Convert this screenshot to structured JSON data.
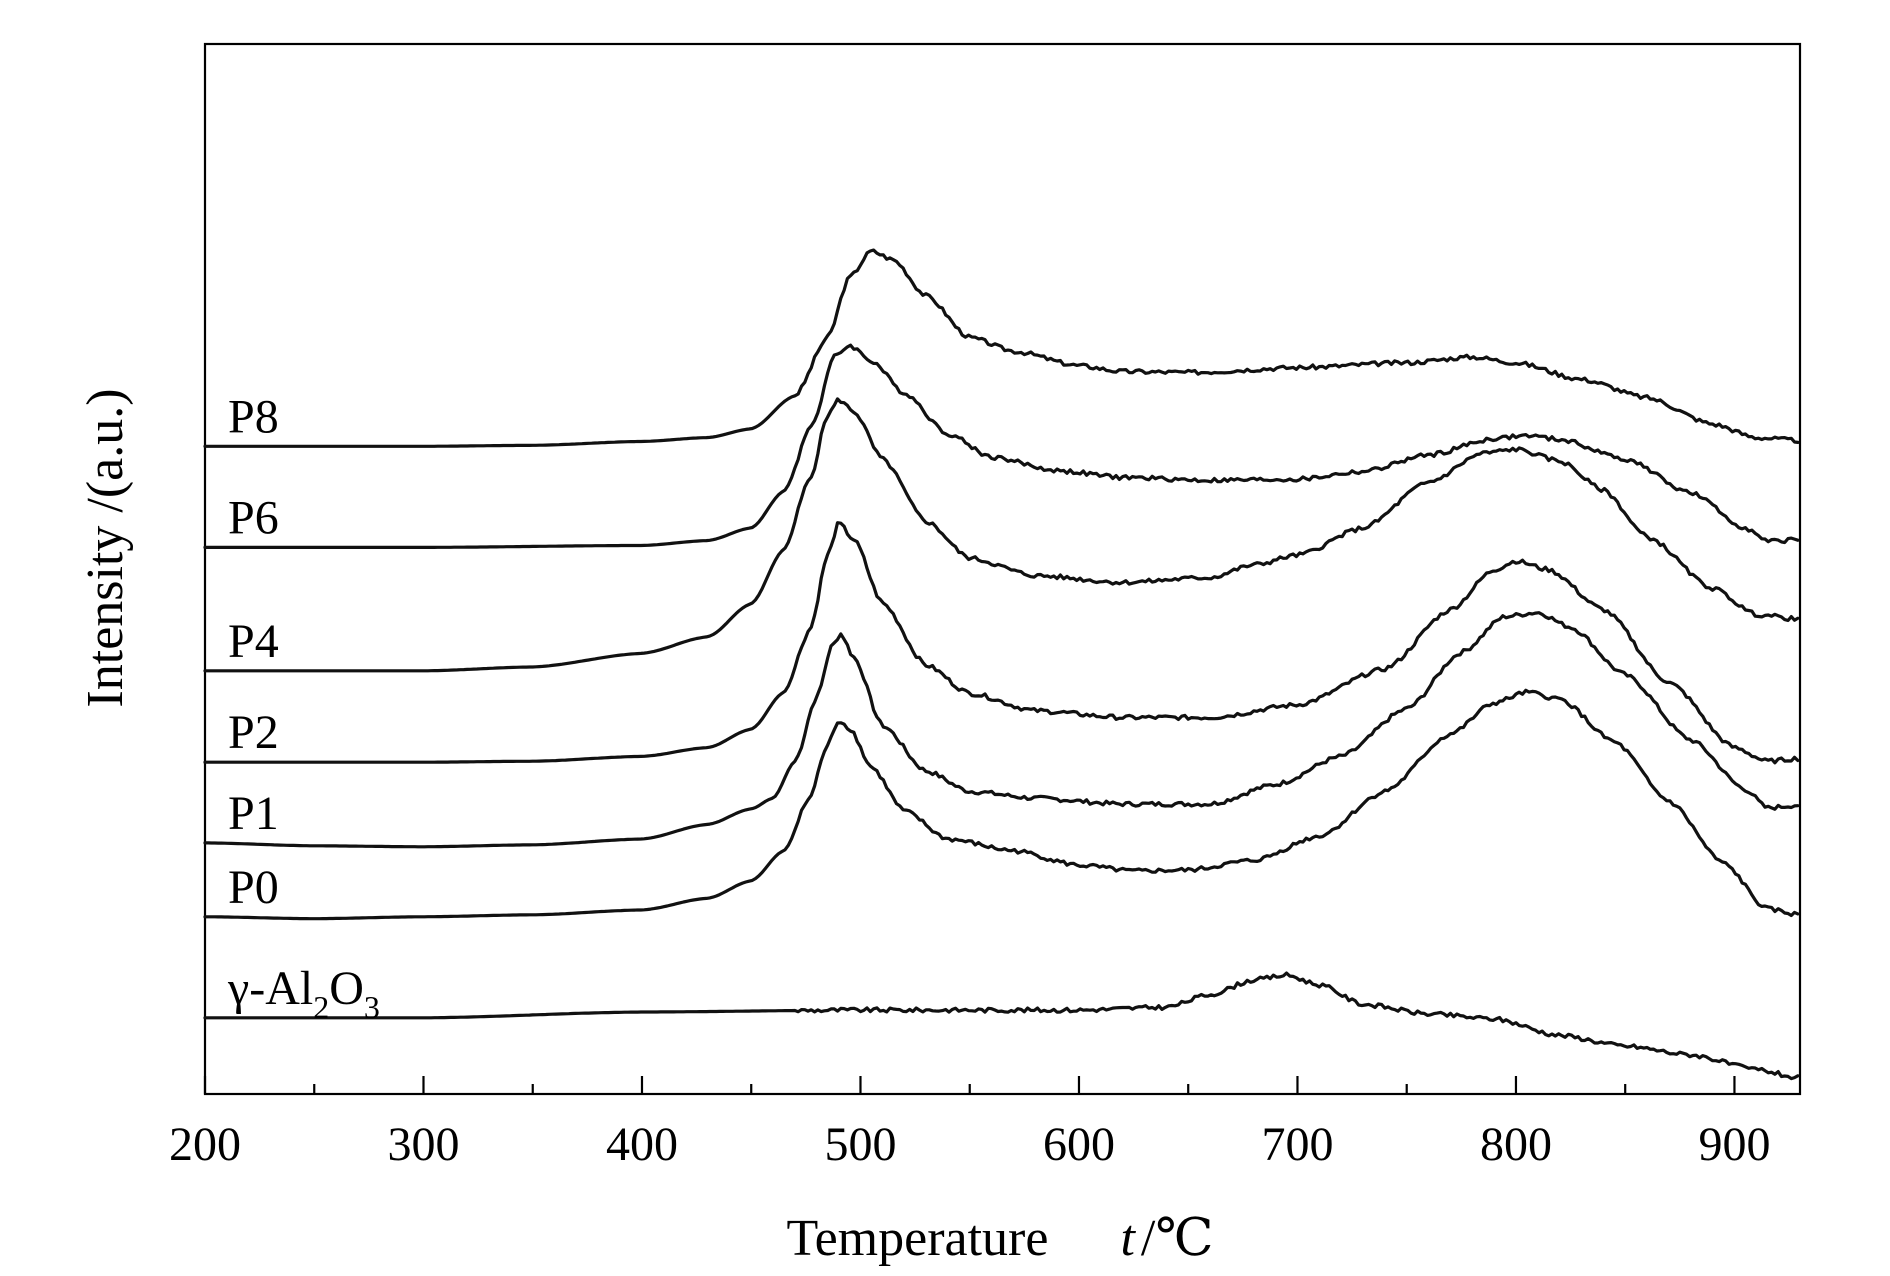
{
  "chart_data": {
    "type": "line",
    "xlabel": "Temperature",
    "xlabel_symbol": "t",
    "xlabel_unit": "/℃",
    "ylabel": "Intensity /(a.u.)",
    "xlim": [
      200,
      930
    ],
    "ylim": [
      0,
      100
    ],
    "x_ticks": [
      200,
      300,
      400,
      500,
      600,
      700,
      800,
      900
    ],
    "x_minor_ticks": [
      250,
      350,
      450,
      550,
      650,
      750,
      850
    ],
    "yticks_shown": false,
    "grid": false,
    "legend": "inline labels at left of each curve",
    "series": [
      {
        "name": "P8",
        "label_parts": [
          [
            "P8",
            null
          ]
        ],
        "points": [
          [
            200,
            65.4
          ],
          [
            250,
            65.4
          ],
          [
            300,
            65.4
          ],
          [
            350,
            65.5
          ],
          [
            400,
            65.9
          ],
          [
            430,
            66.3
          ],
          [
            450,
            67.2
          ],
          [
            470,
            70.6
          ],
          [
            485,
            76.6
          ],
          [
            495,
            82.8
          ],
          [
            505,
            85.5
          ],
          [
            515,
            84.6
          ],
          [
            530,
            80.9
          ],
          [
            550,
            76.6
          ],
          [
            570,
            75.2
          ],
          [
            600,
            73.7
          ],
          [
            620,
            73.1
          ],
          [
            650,
            73.0
          ],
          [
            700,
            73.5
          ],
          [
            750,
            74.0
          ],
          [
            780,
            74.6
          ],
          [
            800,
            74.0
          ],
          [
            830,
            72.3
          ],
          [
            860,
            70.4
          ],
          [
            890,
            67.7
          ],
          [
            910,
            66.3
          ],
          [
            930,
            66.0
          ]
        ]
      },
      {
        "name": "P6",
        "label_parts": [
          [
            "P6",
            null
          ]
        ],
        "points": [
          [
            200,
            55.0
          ],
          [
            300,
            55.0
          ],
          [
            400,
            55.2
          ],
          [
            430,
            55.7
          ],
          [
            450,
            57.0
          ],
          [
            465,
            60.8
          ],
          [
            478,
            67.7
          ],
          [
            488,
            74.6
          ],
          [
            495,
            75.8
          ],
          [
            505,
            74.2
          ],
          [
            520,
            70.9
          ],
          [
            540,
            66.7
          ],
          [
            560,
            64.3
          ],
          [
            590,
            62.9
          ],
          [
            620,
            62.2
          ],
          [
            660,
            61.9
          ],
          [
            700,
            62.0
          ],
          [
            730,
            62.8
          ],
          [
            760,
            64.5
          ],
          [
            790,
            66.2
          ],
          [
            805,
            66.5
          ],
          [
            820,
            66.1
          ],
          [
            850,
            64.1
          ],
          [
            880,
            60.6
          ],
          [
            905,
            57.0
          ],
          [
            915,
            55.6
          ],
          [
            930,
            55.8
          ]
        ]
      },
      {
        "name": "P4",
        "label_parts": [
          [
            "P4",
            null
          ]
        ],
        "points": [
          [
            200,
            42.3
          ],
          [
            300,
            42.3
          ],
          [
            350,
            42.7
          ],
          [
            400,
            44.1
          ],
          [
            430,
            45.8
          ],
          [
            450,
            49.2
          ],
          [
            465,
            54.8
          ],
          [
            477,
            62.1
          ],
          [
            485,
            68.6
          ],
          [
            490,
            70.2
          ],
          [
            497,
            69.0
          ],
          [
            510,
            64.1
          ],
          [
            530,
            57.7
          ],
          [
            550,
            53.9
          ],
          [
            580,
            52.1
          ],
          [
            620,
            51.4
          ],
          [
            660,
            51.9
          ],
          [
            680,
            53.2
          ],
          [
            700,
            54.2
          ],
          [
            730,
            57.0
          ],
          [
            760,
            61.7
          ],
          [
            785,
            64.7
          ],
          [
            800,
            65.1
          ],
          [
            820,
            63.9
          ],
          [
            840,
            60.9
          ],
          [
            860,
            56.1
          ],
          [
            890,
            50.8
          ],
          [
            910,
            48.1
          ],
          [
            930,
            47.6
          ]
        ]
      },
      {
        "name": "P2",
        "label_parts": [
          [
            "P2",
            null
          ]
        ],
        "points": [
          [
            200,
            32.9
          ],
          [
            300,
            32.9
          ],
          [
            350,
            33.0
          ],
          [
            400,
            33.5
          ],
          [
            430,
            34.4
          ],
          [
            450,
            36.3
          ],
          [
            465,
            40.1
          ],
          [
            477,
            46.6
          ],
          [
            485,
            54.2
          ],
          [
            490,
            57.5
          ],
          [
            497,
            55.8
          ],
          [
            510,
            49.3
          ],
          [
            530,
            42.9
          ],
          [
            550,
            40.0
          ],
          [
            580,
            38.2
          ],
          [
            620,
            37.5
          ],
          [
            660,
            37.5
          ],
          [
            700,
            38.8
          ],
          [
            740,
            42.5
          ],
          [
            770,
            48.6
          ],
          [
            790,
            52.7
          ],
          [
            800,
            53.6
          ],
          [
            815,
            52.7
          ],
          [
            840,
            48.6
          ],
          [
            870,
            41.1
          ],
          [
            900,
            34.4
          ],
          [
            915,
            33.0
          ],
          [
            930,
            33.3
          ]
        ]
      },
      {
        "name": "P1",
        "label_parts": [
          [
            "P1",
            null
          ]
        ],
        "points": [
          [
            200,
            24.6
          ],
          [
            250,
            24.3
          ],
          [
            300,
            24.2
          ],
          [
            350,
            24.4
          ],
          [
            400,
            25.0
          ],
          [
            430,
            26.5
          ],
          [
            450,
            28.1
          ],
          [
            460,
            29.2
          ],
          [
            470,
            33.0
          ],
          [
            480,
            39.6
          ],
          [
            487,
            44.9
          ],
          [
            491,
            46.1
          ],
          [
            497,
            43.7
          ],
          [
            510,
            36.7
          ],
          [
            530,
            32.0
          ],
          [
            550,
            29.9
          ],
          [
            580,
            29.2
          ],
          [
            620,
            28.6
          ],
          [
            660,
            28.6
          ],
          [
            690,
            30.6
          ],
          [
            720,
            33.5
          ],
          [
            750,
            38.4
          ],
          [
            775,
            44.2
          ],
          [
            795,
            47.9
          ],
          [
            810,
            48.3
          ],
          [
            825,
            46.8
          ],
          [
            850,
            41.9
          ],
          [
            880,
            35.2
          ],
          [
            905,
            30.1
          ],
          [
            915,
            28.2
          ],
          [
            930,
            28.5
          ]
        ]
      },
      {
        "name": "P0",
        "label_parts": [
          [
            "P0",
            null
          ]
        ],
        "points": [
          [
            200,
            17.0
          ],
          [
            250,
            16.8
          ],
          [
            300,
            17.0
          ],
          [
            350,
            17.2
          ],
          [
            400,
            17.7
          ],
          [
            430,
            18.9
          ],
          [
            450,
            20.7
          ],
          [
            465,
            23.8
          ],
          [
            477,
            29.3
          ],
          [
            484,
            34.2
          ],
          [
            490,
            37.2
          ],
          [
            495,
            36.4
          ],
          [
            505,
            32.4
          ],
          [
            520,
            27.9
          ],
          [
            540,
            25.0
          ],
          [
            570,
            23.8
          ],
          [
            600,
            22.3
          ],
          [
            625,
            21.7
          ],
          [
            650,
            21.8
          ],
          [
            680,
            22.8
          ],
          [
            710,
            25.3
          ],
          [
            740,
            29.9
          ],
          [
            770,
            35.8
          ],
          [
            790,
            39.0
          ],
          [
            805,
            40.1
          ],
          [
            820,
            39.4
          ],
          [
            845,
            35.0
          ],
          [
            870,
            28.9
          ],
          [
            895,
            22.5
          ],
          [
            915,
            17.8
          ],
          [
            930,
            17.2
          ]
        ]
      },
      {
        "name": "γ-Al2O3",
        "label_parts": [
          [
            "γ-Al",
            null
          ],
          [
            "2",
            "sub"
          ],
          [
            "O",
            null
          ],
          [
            "3",
            "sub"
          ]
        ],
        "points": [
          [
            200,
            6.6
          ],
          [
            300,
            6.6
          ],
          [
            400,
            7.2
          ],
          [
            500,
            7.4
          ],
          [
            600,
            7.4
          ],
          [
            640,
            7.7
          ],
          [
            660,
            9.0
          ],
          [
            680,
            10.5
          ],
          [
            695,
            11.0
          ],
          [
            710,
            10.0
          ],
          [
            730,
            8.0
          ],
          [
            760,
            7.0
          ],
          [
            790,
            6.5
          ],
          [
            820,
            4.8
          ],
          [
            850,
            3.7
          ],
          [
            880,
            2.8
          ],
          [
            910,
            1.3
          ],
          [
            930,
            0.4
          ]
        ]
      }
    ]
  }
}
